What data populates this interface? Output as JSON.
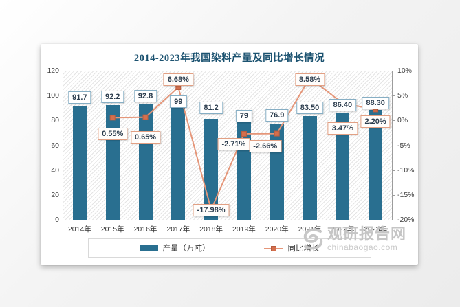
{
  "watermark": {
    "site_name": "观研报告网",
    "site_url": "chinabaogao.com",
    "logo": "swirl-logo",
    "color": "#c5c5c5"
  },
  "chart_data": {
    "type": "bar",
    "title": "2014-2023年我国染料产量及同比增长情况",
    "categories": [
      "2014年",
      "2015年",
      "2016年",
      "2017年",
      "2018年",
      "2019年",
      "2020年",
      "2021年",
      "2022年",
      "2023年"
    ],
    "series": [
      {
        "name": "产量（万吨）",
        "type": "bar",
        "axis": "left",
        "color": "#296f90",
        "values": [
          91.7,
          92.2,
          92.8,
          99,
          81.2,
          79,
          76.9,
          83.5,
          86.4,
          88.3
        ],
        "labels": [
          "91.7",
          "92.2",
          "92.8",
          "99",
          "81.2",
          "79",
          "76.9",
          "83.50",
          "86.40",
          "88.30"
        ]
      },
      {
        "name": "同比增长",
        "type": "line",
        "axis": "right",
        "color": "#e59679",
        "marker_color": "#d46f4d",
        "values": [
          null,
          0.55,
          0.65,
          6.68,
          -17.98,
          -2.71,
          -2.66,
          8.58,
          3.47,
          2.2
        ],
        "labels": [
          "",
          "0.55%",
          "0.65%",
          "6.68%",
          "-17.98%",
          "-2.71%",
          "-2.66%",
          "8.58%",
          "3.47%",
          "2.20%"
        ]
      }
    ],
    "left_axis": {
      "min": 0,
      "max": 120,
      "ticks": [
        "120",
        "100",
        "80",
        "60",
        "40",
        "20",
        "0"
      ]
    },
    "right_axis": {
      "min": -20,
      "max": 10,
      "ticks": [
        "10%",
        "5%",
        "0%",
        "-5%",
        "-10%",
        "-15%",
        "-20%"
      ]
    },
    "legend": {
      "position": "bottom",
      "entries": [
        "产量（万吨）",
        "同比增长"
      ]
    },
    "grid": false,
    "plot_background": "diagonal-hatch"
  }
}
